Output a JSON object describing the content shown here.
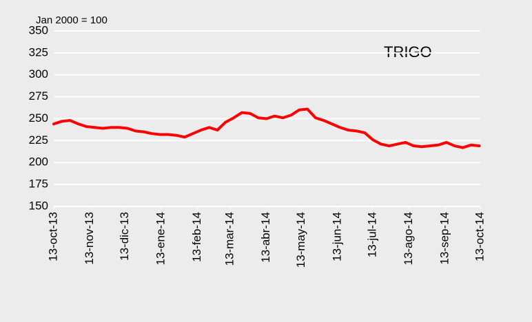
{
  "chart_data": {
    "type": "line",
    "annotations": [
      "Jan 2000 = 100"
    ],
    "x": [
      "2013-10-13",
      "2013-10-20",
      "2013-10-27",
      "2013-11-03",
      "2013-11-10",
      "2013-11-17",
      "2013-11-24",
      "2013-12-01",
      "2013-12-08",
      "2013-12-15",
      "2013-12-22",
      "2013-12-29",
      "2014-01-05",
      "2014-01-12",
      "2014-01-19",
      "2014-01-26",
      "2014-02-02",
      "2014-02-09",
      "2014-02-16",
      "2014-02-23",
      "2014-03-02",
      "2014-03-09",
      "2014-03-16",
      "2014-03-23",
      "2014-03-30",
      "2014-04-06",
      "2014-04-13",
      "2014-04-20",
      "2014-04-27",
      "2014-05-04",
      "2014-05-11",
      "2014-05-18",
      "2014-05-25",
      "2014-06-01",
      "2014-06-08",
      "2014-06-15",
      "2014-06-22",
      "2014-06-29",
      "2014-07-06",
      "2014-07-13",
      "2014-07-20",
      "2014-07-27",
      "2014-08-03",
      "2014-08-10",
      "2014-08-17",
      "2014-08-24",
      "2014-08-31",
      "2014-09-07",
      "2014-09-14",
      "2014-09-21",
      "2014-09-28",
      "2014-10-05",
      "2014-10-12"
    ],
    "series": [
      {
        "name": "TRIGO",
        "color": "#ff0000",
        "values": [
          244,
          247,
          248,
          244,
          241,
          240,
          239,
          240,
          240,
          239,
          236,
          235,
          233,
          232,
          232,
          231,
          229,
          233,
          237,
          240,
          237,
          246,
          251,
          257,
          256,
          251,
          250,
          253,
          251,
          254,
          260,
          261,
          251,
          248,
          244,
          240,
          237,
          236,
          234,
          226,
          221,
          219,
          221,
          223,
          219,
          218,
          219,
          220,
          223,
          219,
          217,
          220,
          219
        ]
      }
    ],
    "xlim": [
      "2013-10-13",
      "2014-10-13"
    ],
    "xticks": [
      {
        "value": "2013-10-13",
        "label": "13-oct-13"
      },
      {
        "value": "2013-11-13",
        "label": "13-nov-13"
      },
      {
        "value": "2013-12-13",
        "label": "13-dic-13"
      },
      {
        "value": "2014-01-13",
        "label": "13-ene-14"
      },
      {
        "value": "2014-02-13",
        "label": "13-feb-14"
      },
      {
        "value": "2014-03-13",
        "label": "13-mar-14"
      },
      {
        "value": "2014-04-13",
        "label": "13-abr-14"
      },
      {
        "value": "2014-05-13",
        "label": "13-may-14"
      },
      {
        "value": "2014-06-13",
        "label": "13-jun-14"
      },
      {
        "value": "2014-07-13",
        "label": "13-jul-14"
      },
      {
        "value": "2014-08-13",
        "label": "13-ago-14"
      },
      {
        "value": "2014-09-13",
        "label": "13-sep-14"
      },
      {
        "value": "2014-10-13",
        "label": "13-oct-14"
      }
    ],
    "ylim": [
      150,
      350
    ],
    "yticks": [
      150,
      175,
      200,
      225,
      250,
      275,
      300,
      325,
      350
    ],
    "grid": true
  }
}
